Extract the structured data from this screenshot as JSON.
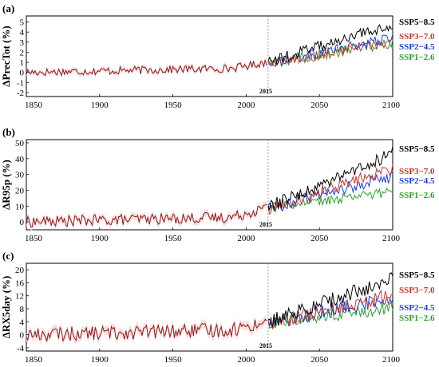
{
  "chart_data": [
    {
      "type": "line",
      "panel_label": "(a)",
      "ylabel": "ΔPrecTot (%)",
      "yticks": [
        "-2",
        "-1",
        "0",
        "1",
        "2",
        "3",
        "4",
        "5"
      ],
      "ylim": [
        -2.4,
        5.6
      ],
      "xticks": [
        "1850",
        "1900",
        "1950",
        "2000",
        "2050",
        "2100"
      ],
      "xlim": [
        1850,
        2100
      ],
      "marker_year": 2015,
      "marker_label": "2015",
      "legend_placement": "right",
      "historical": {
        "color": "#8B1A1A",
        "base_1850": 0.0,
        "base_1990": 0.4,
        "base_2014": 1.0,
        "amplitude": 0.4,
        "envelope_color": "#f7d6d6"
      },
      "series": [
        {
          "name": "SSP5−8.5",
          "color": "#000000",
          "start": 1.0,
          "end": 4.8,
          "amplitude": 0.55
        },
        {
          "name": "SSP3−7.0",
          "color": "#c0392b",
          "start": 0.8,
          "end": 3.0,
          "amplitude": 0.5
        },
        {
          "name": "SSP2−4.5",
          "color": "#1f3fd6",
          "start": 0.9,
          "end": 3.4,
          "amplitude": 0.5
        },
        {
          "name": "SSP1−2.6",
          "color": "#2ca02c",
          "start": 0.9,
          "end": 3.0,
          "amplitude": 0.55
        }
      ]
    },
    {
      "type": "line",
      "panel_label": "(b)",
      "ylabel": "ΔR95p (%)",
      "yticks": [
        "0",
        "10",
        "20",
        "30",
        "40",
        "50"
      ],
      "ylim": [
        -5,
        52
      ],
      "xticks": [
        "1850",
        "1900",
        "1950",
        "2000",
        "2050",
        "2100"
      ],
      "xlim": [
        1850,
        2100
      ],
      "marker_year": 2015,
      "marker_label": "2015",
      "legend_placement": "right",
      "historical": {
        "color": "#8B1A1A",
        "base_1850": 0.0,
        "base_1990": 3.0,
        "base_2014": 9.0,
        "amplitude": 3.5,
        "envelope_color": "#f7d6d6"
      },
      "series": [
        {
          "name": "SSP5−8.5",
          "color": "#000000",
          "start": 9.0,
          "end": 44.0,
          "amplitude": 4.5
        },
        {
          "name": "SSP3−7.0",
          "color": "#c0392b",
          "start": 8.0,
          "end": 34.0,
          "amplitude": 4.0
        },
        {
          "name": "SSP2−4.5",
          "color": "#1f3fd6",
          "start": 8.5,
          "end": 29.0,
          "amplitude": 4.0
        },
        {
          "name": "SSP1−2.6",
          "color": "#2ca02c",
          "start": 8.5,
          "end": 19.0,
          "amplitude": 3.0
        }
      ]
    },
    {
      "type": "line",
      "panel_label": "(c)",
      "ylabel": "ΔRX5day (%)",
      "yticks": [
        "-4",
        "0",
        "4",
        "8",
        "12",
        "16",
        "20"
      ],
      "ylim": [
        -5,
        22
      ],
      "xticks": [
        "1850",
        "1900",
        "1950",
        "2000",
        "2050",
        "2100"
      ],
      "xlim": [
        1850,
        2100
      ],
      "marker_year": 2015,
      "marker_label": "2015",
      "legend_placement": "right",
      "historical": {
        "color": "#8B1A1A",
        "base_1850": 0.0,
        "base_1990": 1.5,
        "base_2014": 4.0,
        "amplitude": 2.2,
        "envelope_color": "#f7d6d6"
      },
      "series": [
        {
          "name": "SSP5−8.5",
          "color": "#000000",
          "start": 4.0,
          "end": 17.0,
          "amplitude": 2.5
        },
        {
          "name": "SSP3−7.0",
          "color": "#c0392b",
          "start": 3.5,
          "end": 12.0,
          "amplitude": 2.3
        },
        {
          "name": "SSP2−4.5",
          "color": "#1f3fd6",
          "start": 3.8,
          "end": 11.0,
          "amplitude": 2.3
        },
        {
          "name": "SSP1−2.6",
          "color": "#2ca02c",
          "start": 3.8,
          "end": 8.0,
          "amplitude": 2.0
        }
      ]
    }
  ]
}
